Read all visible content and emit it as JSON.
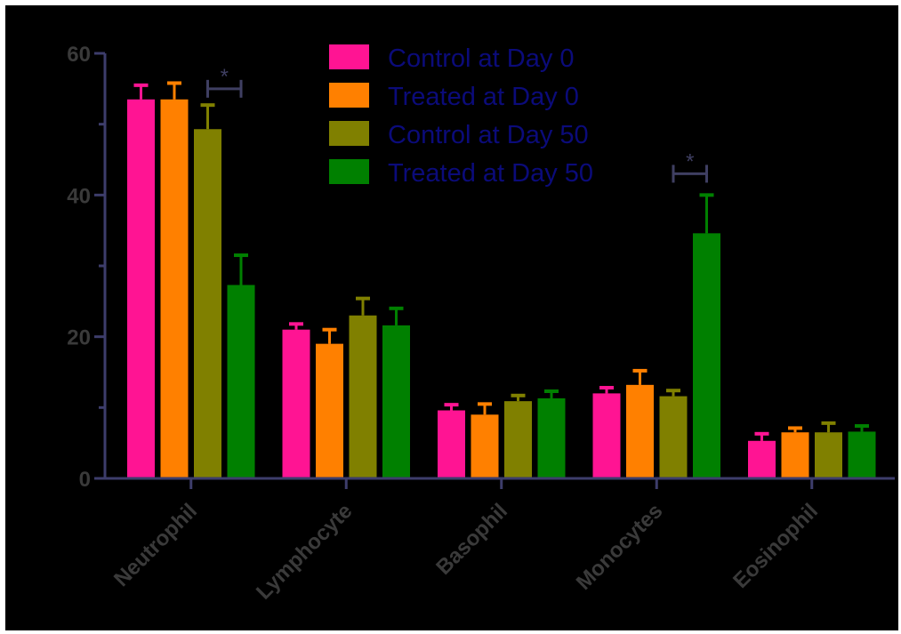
{
  "chart_data": {
    "type": "bar",
    "title": "",
    "xlabel": "",
    "ylabel": "",
    "ylim": [
      0,
      60
    ],
    "yticks": [
      0,
      20,
      40,
      60
    ],
    "categories": [
      "Neutrophil",
      "Lymphocyte",
      "Basophil",
      "Monocytes",
      "Eosinophil"
    ],
    "series": [
      {
        "name": "Control at Day 0",
        "color": "#ff1493",
        "values": [
          53.5,
          21.0,
          9.6,
          12.0,
          5.3
        ],
        "errors": [
          2.0,
          0.8,
          0.8,
          0.8,
          1.0
        ]
      },
      {
        "name": "Treated at Day 0",
        "color": "#ff8000",
        "values": [
          53.5,
          19.0,
          9.0,
          13.2,
          6.5
        ],
        "errors": [
          2.3,
          2.0,
          1.5,
          2.0,
          0.6
        ]
      },
      {
        "name": "Control at Day 50",
        "color": "#808000",
        "values": [
          49.3,
          23.0,
          10.9,
          11.6,
          6.5
        ],
        "errors": [
          3.4,
          2.4,
          0.8,
          0.8,
          1.3
        ]
      },
      {
        "name": "Treated at Day 50",
        "color": "#008000",
        "values": [
          27.3,
          21.6,
          11.3,
          34.6,
          6.6
        ],
        "errors": [
          4.2,
          2.4,
          1.0,
          5.4,
          0.8
        ]
      }
    ],
    "significance": [
      {
        "category": "Neutrophil",
        "between": [
          "Control at Day 50",
          "Treated at Day 50"
        ],
        "y": 55,
        "label": "*"
      },
      {
        "category": "Monocytes",
        "between": [
          "Control at Day 50",
          "Treated at Day 50"
        ],
        "y": 43,
        "label": "*"
      }
    ],
    "legend_position": "top-center",
    "grid": false,
    "colors": {
      "background": "#000000",
      "axis": "#3d3d6b",
      "text": "#3a3a3a",
      "legend_text": "#0b0b7a"
    }
  }
}
